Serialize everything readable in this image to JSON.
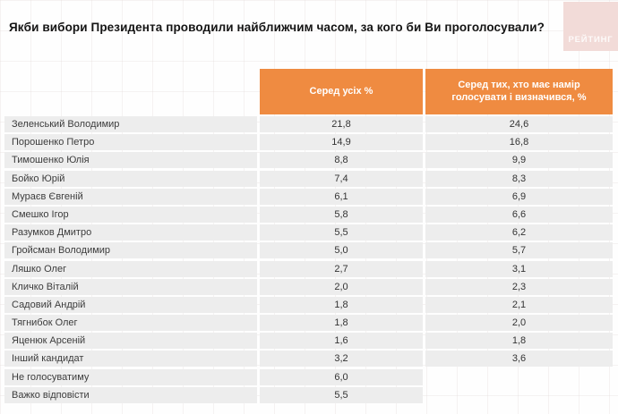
{
  "title": "Якби вибори Президента проводили найближчим часом, за кого би Ви проголосували?",
  "logo": {
    "text": "РЕЙТИНГ"
  },
  "colors": {
    "header_orange": "#ef8b41",
    "row_grey": "#ededed",
    "logo_pink": "#f2dbd8"
  },
  "table": {
    "columns": [
      "Серед усіх %",
      "Серед тих, хто має намір голосувати і визначився, %"
    ],
    "rows": [
      {
        "name": "Зеленський Володимир",
        "all": "21,8",
        "decided": "24,6"
      },
      {
        "name": "Порошенко Петро",
        "all": "14,9",
        "decided": "16,8"
      },
      {
        "name": "Тимошенко Юлія",
        "all": "8,8",
        "decided": "9,9"
      },
      {
        "name": "Бойко Юрій",
        "all": "7,4",
        "decided": "8,3"
      },
      {
        "name": "Мураєв Євгеній",
        "all": "6,1",
        "decided": "6,9"
      },
      {
        "name": "Смешко Ігор",
        "all": "5,8",
        "decided": "6,6"
      },
      {
        "name": "Разумков Дмитро",
        "all": "5,5",
        "decided": "6,2"
      },
      {
        "name": "Гройсман Володимир",
        "all": "5,0",
        "decided": "5,7"
      },
      {
        "name": "Ляшко Олег",
        "all": "2,7",
        "decided": "3,1"
      },
      {
        "name": "Кличко Віталій",
        "all": "2,0",
        "decided": "2,3"
      },
      {
        "name": "Садовий Андрій",
        "all": "1,8",
        "decided": "2,1"
      },
      {
        "name": "Тягнибок Олег",
        "all": "1,8",
        "decided": "2,0"
      },
      {
        "name": "Яценюк Арсеній",
        "all": "1,6",
        "decided": "1,8"
      },
      {
        "name": "Інший кандидат",
        "all": "3,2",
        "decided": "3,6"
      },
      {
        "name": "Не голосуватиму",
        "all": "6,0",
        "decided": null
      },
      {
        "name": "Важко відповісти",
        "all": "5,5",
        "decided": null
      }
    ]
  },
  "chart_data": {
    "type": "table",
    "title": "Якби вибори Президента проводили найближчим часом, за кого би Ви проголосували?",
    "columns": [
      "Серед усіх %",
      "Серед тих, хто має намір голосувати і визначився, %"
    ],
    "categories": [
      "Зеленський Володимир",
      "Порошенко Петро",
      "Тимошенко Юлія",
      "Бойко Юрій",
      "Мураєв Євгеній",
      "Смешко Ігор",
      "Разумков Дмитро",
      "Гройсман Володимир",
      "Ляшко Олег",
      "Кличко Віталій",
      "Садовий Андрій",
      "Тягнибок Олег",
      "Яценюк Арсеній",
      "Інший кандидат",
      "Не голосуватиму",
      "Важко відповісти"
    ],
    "series": [
      {
        "name": "Серед усіх %",
        "values": [
          21.8,
          14.9,
          8.8,
          7.4,
          6.1,
          5.8,
          5.5,
          5.0,
          2.7,
          2.0,
          1.8,
          1.8,
          1.6,
          3.2,
          6.0,
          5.5
        ]
      },
      {
        "name": "Серед тих, хто має намір голосувати і визначився, %",
        "values": [
          24.6,
          16.8,
          9.9,
          8.3,
          6.9,
          6.6,
          6.2,
          5.7,
          3.1,
          2.3,
          2.1,
          2.0,
          1.8,
          3.6,
          null,
          null
        ]
      }
    ],
    "legend_position": "none",
    "grid": false
  }
}
